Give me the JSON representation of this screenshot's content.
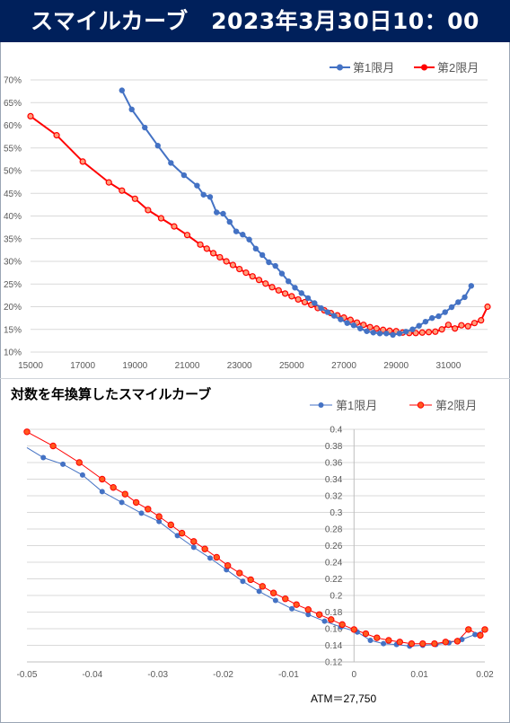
{
  "header": {
    "title": "スマイルカーブ　2023年3月30日10：00"
  },
  "colors": {
    "banner": "#00205b",
    "series1": "#4472c4",
    "series2": "#ff0000",
    "series2_marker_fill": "#ff5a1f"
  },
  "chart_data": [
    {
      "type": "line",
      "title": "",
      "legend": "top-right",
      "grid": "horizontal",
      "xlim": [
        15000,
        32500
      ],
      "ylim": [
        0.1,
        0.7
      ],
      "xticks": [
        "15000",
        "17000",
        "19000",
        "21000",
        "23000",
        "25000",
        "27000",
        "29000",
        "31000"
      ],
      "yticks": [
        "10%",
        "15%",
        "20%",
        "25%",
        "30%",
        "35%",
        "40%",
        "45%",
        "50%",
        "55%",
        "60%",
        "65%",
        "70%"
      ],
      "series": [
        {
          "name": "第1限月",
          "x": [
            18500,
            18875,
            19375,
            19875,
            20375,
            20875,
            21375,
            21625,
            21875,
            22125,
            22375,
            22625,
            22875,
            23125,
            23375,
            23625,
            23875,
            24125,
            24375,
            24625,
            24875,
            25125,
            25375,
            25625,
            25875,
            26125,
            26375,
            26625,
            26875,
            27125,
            27375,
            27625,
            27875,
            28125,
            28375,
            28625,
            28875,
            29125,
            29375,
            29625,
            29875,
            30125,
            30375,
            30625,
            30875,
            31125,
            31375,
            31625,
            31875
          ],
          "y": [
            0.677,
            0.635,
            0.595,
            0.555,
            0.517,
            0.49,
            0.467,
            0.447,
            0.442,
            0.408,
            0.405,
            0.387,
            0.366,
            0.359,
            0.348,
            0.328,
            0.314,
            0.298,
            0.29,
            0.273,
            0.256,
            0.242,
            0.23,
            0.219,
            0.208,
            0.197,
            0.188,
            0.18,
            0.172,
            0.164,
            0.159,
            0.152,
            0.146,
            0.143,
            0.141,
            0.141,
            0.138,
            0.141,
            0.145,
            0.15,
            0.158,
            0.167,
            0.175,
            0.179,
            0.188,
            0.199,
            0.21,
            0.221,
            0.246
          ]
        },
        {
          "name": "第2限月",
          "x": [
            15000,
            16000,
            17000,
            18000,
            18500,
            19000,
            19500,
            20000,
            20500,
            21000,
            21500,
            21750,
            22000,
            22250,
            22500,
            22750,
            23000,
            23250,
            23500,
            23750,
            24000,
            24250,
            24500,
            24750,
            25000,
            25250,
            25500,
            25750,
            26000,
            26250,
            26500,
            26750,
            27000,
            27250,
            27500,
            27750,
            28000,
            28250,
            28500,
            28750,
            29000,
            29250,
            29500,
            29750,
            30000,
            30250,
            30500,
            30750,
            31000,
            31250,
            31500,
            31750,
            32000,
            32250,
            32500
          ],
          "y": [
            0.62,
            0.578,
            0.52,
            0.474,
            0.456,
            0.438,
            0.413,
            0.395,
            0.377,
            0.358,
            0.337,
            0.328,
            0.318,
            0.309,
            0.3,
            0.292,
            0.283,
            0.275,
            0.267,
            0.259,
            0.251,
            0.243,
            0.236,
            0.229,
            0.223,
            0.216,
            0.21,
            0.204,
            0.197,
            0.192,
            0.186,
            0.181,
            0.176,
            0.171,
            0.165,
            0.16,
            0.155,
            0.152,
            0.149,
            0.147,
            0.146,
            0.143,
            0.142,
            0.142,
            0.143,
            0.144,
            0.145,
            0.15,
            0.16,
            0.152,
            0.159,
            0.157,
            0.164,
            0.17,
            0.2
          ]
        }
      ]
    },
    {
      "type": "line",
      "title": "対数を年換算したスマイルカーブ",
      "legend": "top-right",
      "grid": "horizontal",
      "xlim": [
        -0.05,
        0.02
      ],
      "ylim": [
        0.12,
        0.4
      ],
      "xticks": [
        "-0.05",
        "-0.04",
        "-0.03",
        "-0.02",
        "-0.01",
        "0",
        "0.01",
        "0.02"
      ],
      "yticks": [
        "0.12",
        "0.14",
        "0.16",
        "0.18",
        "0.2",
        "0.22",
        "0.24",
        "0.26",
        "0.28",
        "0.3",
        "0.32",
        "0.34",
        "0.36",
        "0.38",
        "0.4"
      ],
      "annotation": "ATM＝27,750",
      "series": [
        {
          "name": "第1限月",
          "x": [
            -0.05,
            -0.0475,
            -0.0445,
            -0.0415,
            -0.0385,
            -0.0355,
            -0.0325,
            -0.0298,
            -0.027,
            -0.0245,
            -0.022,
            -0.0195,
            -0.017,
            -0.0145,
            -0.012,
            -0.0095,
            -0.007,
            -0.0045,
            -0.002,
            0.0005,
            0.0025,
            0.0045,
            0.0065,
            0.0085,
            0.0105,
            0.0125,
            0.0145,
            0.0165,
            0.0185,
            0.02
          ],
          "y": [
            0.378,
            0.366,
            0.358,
            0.345,
            0.325,
            0.312,
            0.299,
            0.289,
            0.272,
            0.258,
            0.245,
            0.231,
            0.217,
            0.205,
            0.194,
            0.184,
            0.177,
            0.169,
            0.162,
            0.156,
            0.146,
            0.142,
            0.141,
            0.139,
            0.14,
            0.141,
            0.143,
            0.147,
            0.153,
            0.159
          ]
        },
        {
          "name": "第2限月",
          "x": [
            -0.05,
            -0.046,
            -0.042,
            -0.0385,
            -0.0368,
            -0.035,
            -0.0333,
            -0.0315,
            -0.0298,
            -0.028,
            -0.0263,
            -0.0245,
            -0.0228,
            -0.021,
            -0.0193,
            -0.0175,
            -0.0158,
            -0.014,
            -0.0123,
            -0.0105,
            -0.0088,
            -0.007,
            -0.0053,
            -0.0035,
            -0.0018,
            0.0,
            0.0018,
            0.0035,
            0.0053,
            0.007,
            0.0088,
            0.0105,
            0.0123,
            0.014,
            0.0158,
            0.0175,
            0.0193,
            0.02
          ],
          "y": [
            0.397,
            0.38,
            0.36,
            0.34,
            0.33,
            0.322,
            0.312,
            0.304,
            0.295,
            0.285,
            0.275,
            0.265,
            0.256,
            0.246,
            0.236,
            0.227,
            0.219,
            0.211,
            0.203,
            0.196,
            0.189,
            0.183,
            0.177,
            0.171,
            0.165,
            0.159,
            0.154,
            0.149,
            0.146,
            0.144,
            0.142,
            0.142,
            0.142,
            0.144,
            0.145,
            0.159,
            0.152,
            0.159
          ]
        }
      ]
    }
  ]
}
